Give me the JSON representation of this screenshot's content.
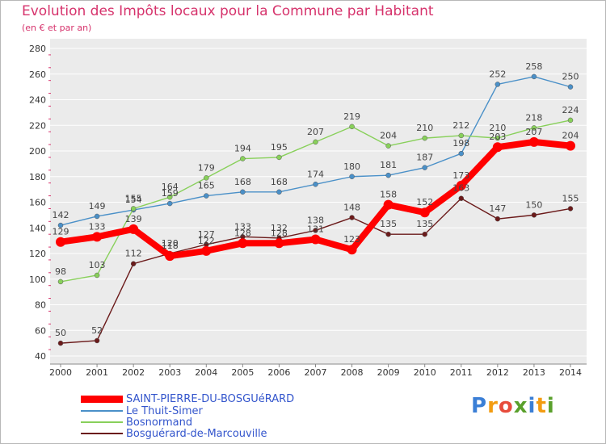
{
  "header": {
    "title": "Evolution des Impôts locaux pour la Commune par Habitant",
    "subtitle": "(en € et par an)"
  },
  "logo": {
    "letters": [
      "P",
      "r",
      "o",
      "x",
      "i",
      "t",
      "i"
    ],
    "colors": [
      "#3b7fd6",
      "#f39c12",
      "#e74c3c",
      "#5aa02c",
      "#3b7fd6",
      "#f39c12",
      "#5aa02c"
    ]
  },
  "colors": {
    "background": "#ebebeb",
    "grid": "#ffffff",
    "axis": "#888888",
    "tick_text": "#333333",
    "label_text": "#444444"
  },
  "chart_data": {
    "type": "line",
    "title": "Evolution des Impôts locaux pour la Commune par Habitant",
    "subtitle": "(en € et par an)",
    "x": [
      2000,
      2001,
      2002,
      2003,
      2004,
      2005,
      2006,
      2007,
      2008,
      2009,
      2010,
      2011,
      2012,
      2013,
      2014
    ],
    "ylim": [
      40,
      280
    ],
    "yticks": [
      40,
      60,
      80,
      100,
      120,
      140,
      160,
      180,
      200,
      220,
      240,
      260,
      280
    ],
    "grid": true,
    "legend_position": "bottom-left",
    "series": [
      {
        "name": "SAINT-PIERRE-DU-BOSGUéRARD",
        "color": "#ff0000",
        "values": [
          129,
          133,
          139,
          118,
          122,
          128,
          128,
          131,
          123,
          158,
          152,
          173,
          203,
          207,
          204
        ]
      },
      {
        "name": "Le Thuit-Simer",
        "color": "#4a90c8",
        "values": [
          142,
          149,
          154,
          159,
          165,
          168,
          168,
          174,
          180,
          181,
          187,
          198,
          252,
          258,
          250
        ]
      },
      {
        "name": "Bosnormand",
        "color": "#88d05a",
        "values": [
          98,
          103,
          155,
          164,
          179,
          194,
          195,
          207,
          219,
          204,
          210,
          212,
          210,
          218,
          224
        ]
      },
      {
        "name": "Bosguérard-de-Marcouville",
        "color": "#6b1a1a",
        "values": [
          50,
          52,
          112,
          120,
          127,
          133,
          132,
          138,
          148,
          135,
          135,
          163,
          147,
          150,
          155
        ]
      }
    ]
  }
}
